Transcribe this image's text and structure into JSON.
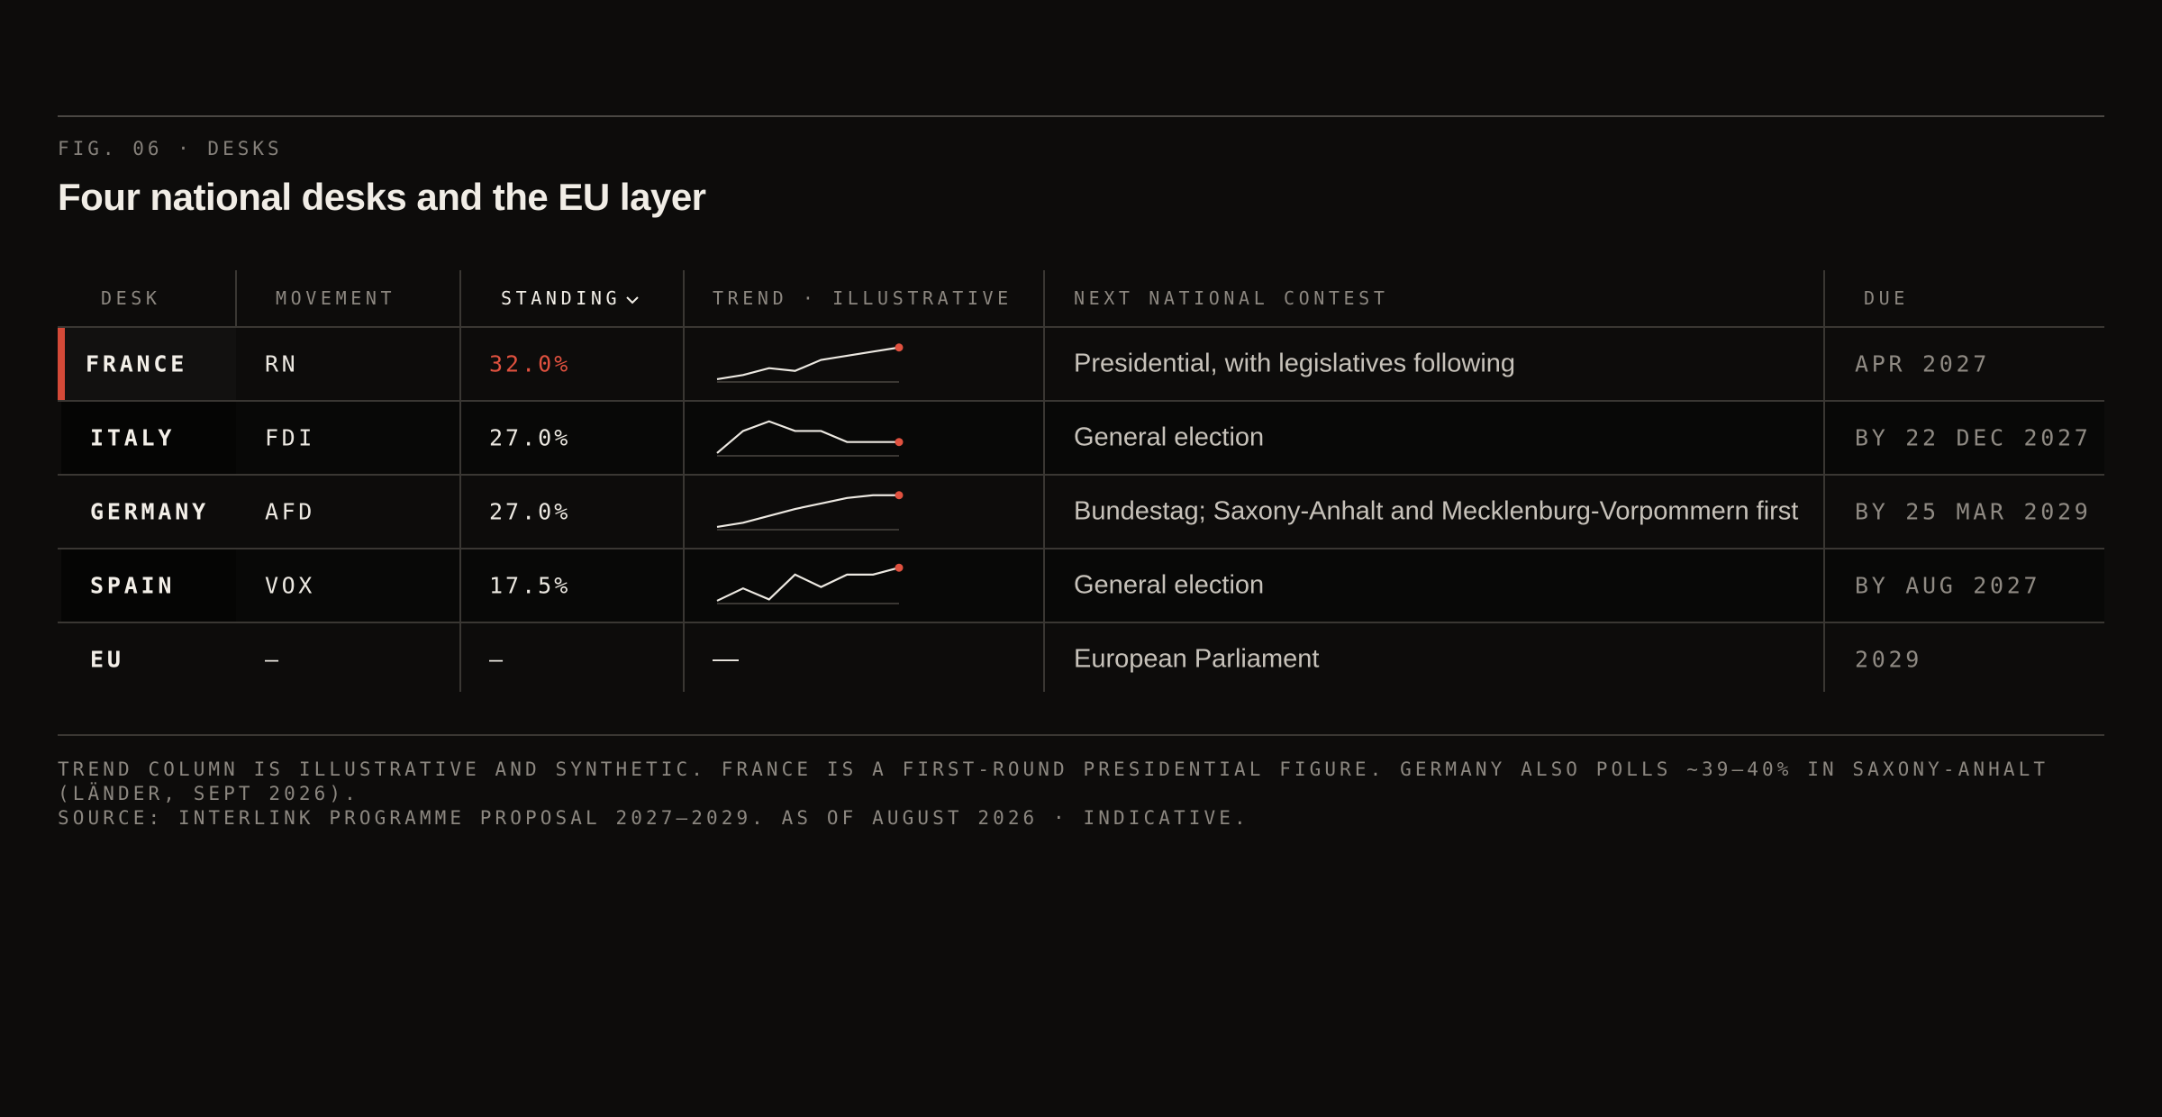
{
  "header": {
    "eyebrow": "FIG. 06 · DESKS",
    "title": "Four national desks and the EU layer"
  },
  "table": {
    "columns": [
      "DESK",
      "MOVEMENT",
      "STANDING",
      "TREND · ILLUSTRATIVE",
      "NEXT NATIONAL CONTEST",
      "DUE"
    ],
    "sort_column": 2,
    "rows": [
      {
        "desk": "FRANCE",
        "movement": "RN",
        "standing": "32.0%",
        "trend": [
          2,
          5,
          10,
          8,
          16,
          19,
          22,
          25
        ],
        "contest": "Presidential, with legislatives following",
        "due": "APR 2027",
        "highlight": true
      },
      {
        "desk": "ITALY",
        "movement": "FDI",
        "standing": "27.0%",
        "trend": [
          2,
          18,
          25,
          18,
          18,
          10,
          10,
          10
        ],
        "contest": "General election",
        "due": "BY 22 DEC 2027",
        "highlight": false
      },
      {
        "desk": "GERMANY",
        "movement": "AFD",
        "standing": "27.0%",
        "trend": [
          2,
          5,
          10,
          15,
          19,
          23,
          25,
          25
        ],
        "contest": "Bundestag; Saxony-Anhalt and Mecklenburg-Vorpommern first",
        "due": "BY 25 MAR 2029",
        "highlight": false
      },
      {
        "desk": "SPAIN",
        "movement": "VOX",
        "standing": "17.5%",
        "trend": [
          2,
          11,
          3,
          21,
          12,
          21,
          21,
          26
        ],
        "contest": "General election",
        "due": "BY AUG 2027",
        "highlight": false
      },
      {
        "desk": "EU",
        "movement": "—",
        "standing": "–",
        "trend": "—",
        "contest": "European Parliament",
        "due": "2029",
        "highlight": false
      }
    ]
  },
  "notes": [
    "TREND COLUMN IS ILLUSTRATIVE AND SYNTHETIC. FRANCE IS A FIRST-ROUND PRESIDENTIAL FIGURE. GERMANY ALSO POLLS ~39–40% IN SAXONY-ANHALT (LÄNDER, SEPT 2026).",
    "SOURCE: INTERLINK PROGRAMME PROPOSAL 2027–2029. AS OF AUGUST 2026 · INDICATIVE."
  ]
}
